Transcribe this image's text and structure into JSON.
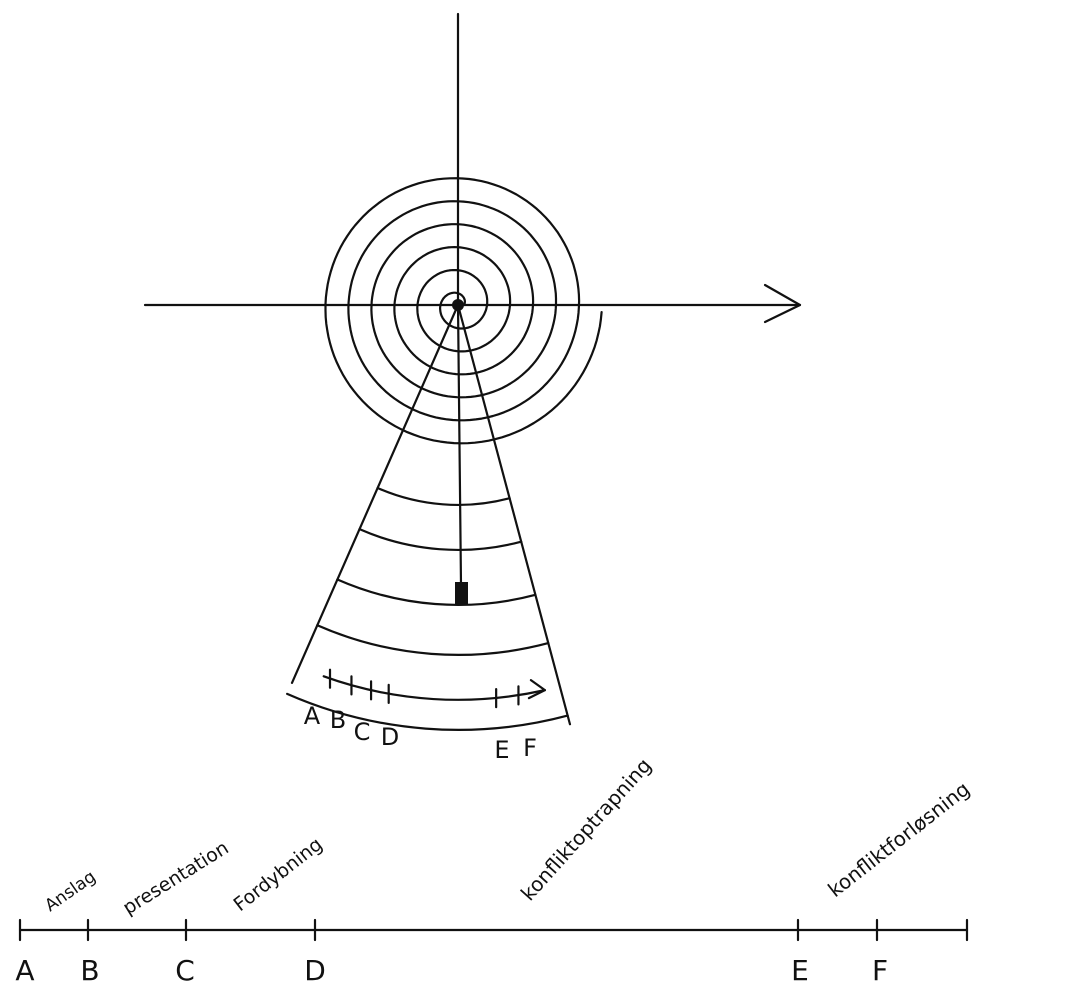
{
  "fan_scale": {
    "labels": [
      "A",
      "B",
      "C",
      "D",
      "E",
      "F"
    ]
  },
  "timeline": {
    "points": [
      "A",
      "B",
      "C",
      "D",
      "E",
      "F"
    ],
    "phases": [
      "Anslag",
      "presentation",
      "Fordybning",
      "konfliktoptrapning",
      "konfliktforløsning"
    ]
  }
}
